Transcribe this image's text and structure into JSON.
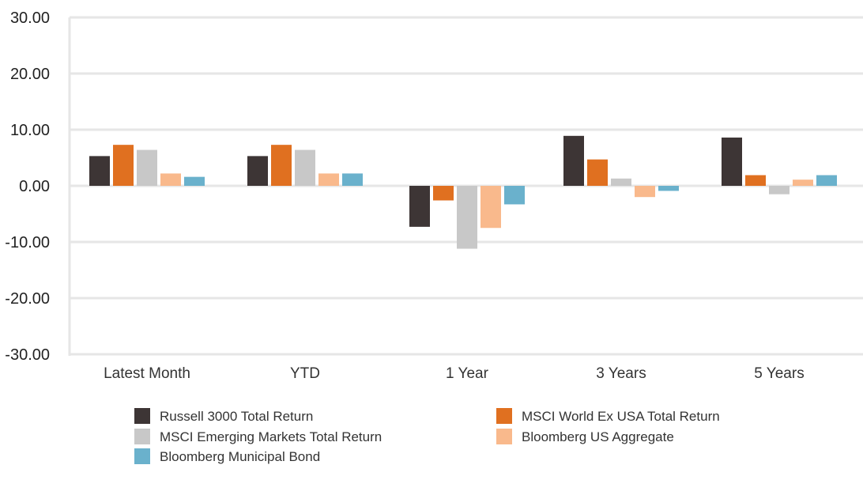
{
  "chart_data": {
    "type": "bar",
    "categories": [
      "Latest Month",
      "YTD",
      "1 Year",
      "3 Years",
      "5 Years"
    ],
    "series": [
      {
        "name": "Russell 3000 Total Return",
        "color": "#3d3535",
        "values": [
          5.3,
          5.3,
          -7.3,
          8.9,
          8.6
        ]
      },
      {
        "name": "MSCI World Ex USA Total Return",
        "color": "#e07020",
        "values": [
          7.3,
          7.3,
          -2.6,
          4.7,
          1.9
        ]
      },
      {
        "name": "MSCI Emerging Markets Total Return",
        "color": "#c8c8c8",
        "values": [
          6.4,
          6.4,
          -11.2,
          1.3,
          -1.5
        ]
      },
      {
        "name": "Bloomberg US Aggregate",
        "color": "#f9b98c",
        "values": [
          2.2,
          2.2,
          -7.5,
          -2.0,
          1.1
        ]
      },
      {
        "name": "Bloomberg Municipal Bond",
        "color": "#6ab1cc",
        "values": [
          1.6,
          2.2,
          -3.3,
          -0.9,
          1.9
        ]
      }
    ],
    "yticks": [
      "30.00",
      "20.00",
      "10.00",
      "0.00",
      "-10.00",
      "-20.00",
      "-30.00"
    ],
    "ylim": [
      -30,
      30
    ],
    "grid": true,
    "legend_position": "bottom"
  }
}
